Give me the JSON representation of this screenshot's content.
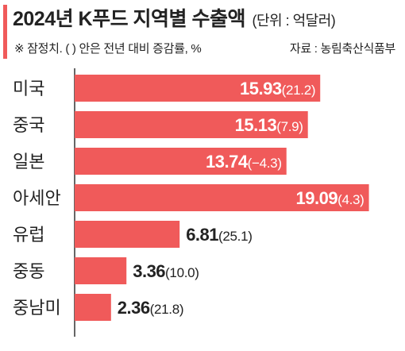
{
  "header": {
    "title": "2024년 K푸드 지역별 수출액",
    "unit": "(단위 : 억달러)",
    "note": "※ 잠정치. (  ) 안은 전년 대비 증감률, %",
    "source": "자료 : 농림축산식품부"
  },
  "colors": {
    "accent": "#f05a5a",
    "bar": "#f05a5a"
  },
  "chart_data": {
    "type": "bar",
    "orientation": "horizontal",
    "categories": [
      "미국",
      "중국",
      "일본",
      "아세안",
      "유럽",
      "중동",
      "중남미"
    ],
    "values": [
      15.93,
      15.13,
      13.74,
      19.09,
      6.81,
      3.36,
      2.36
    ],
    "value_labels": [
      "15.93",
      "15.13",
      "13.74",
      "19.09",
      "6.81",
      "3.36",
      "2.36"
    ],
    "change_labels": [
      "(21.2)",
      "(7.9)",
      "(−4.3)",
      "(4.3)",
      "(25.1)",
      "(10.0)",
      "(21.8)"
    ],
    "change_pct": [
      21.2,
      7.9,
      -4.3,
      4.3,
      25.1,
      10.0,
      21.8
    ],
    "xlim": [
      0,
      20.4
    ]
  }
}
